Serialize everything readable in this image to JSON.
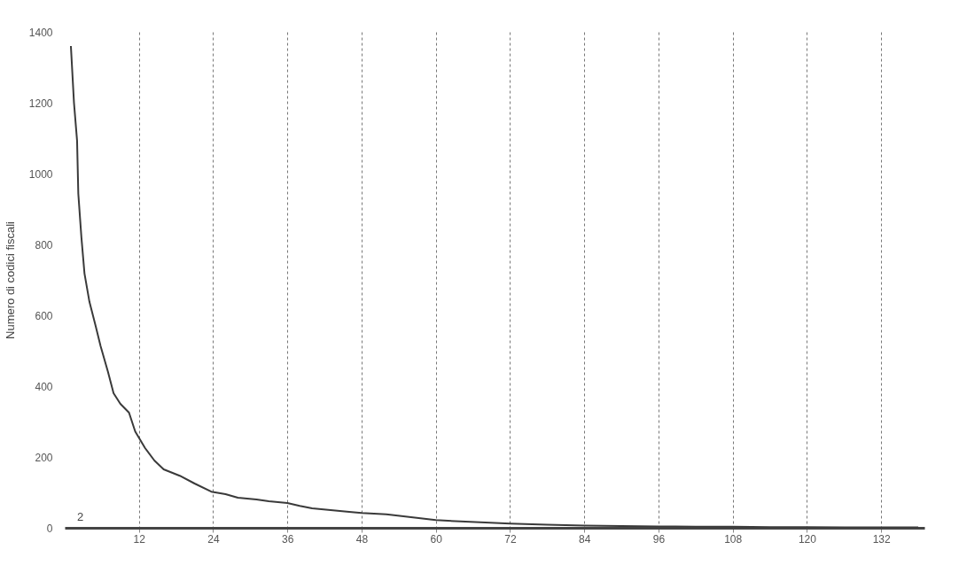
{
  "chart_data": {
    "type": "line",
    "ylabel": "Numero di codici fiscali",
    "annotations": [
      "2"
    ],
    "x": [
      1,
      1.5,
      2,
      2.2,
      2.7,
      3.2,
      4,
      5,
      5.8,
      7,
      7.9,
      9,
      10.4,
      11.4,
      13,
      14.5,
      16,
      18.6,
      21,
      23.7,
      26,
      28,
      31,
      33,
      36,
      38,
      40,
      43,
      46,
      48,
      52,
      56,
      60,
      64,
      68,
      72,
      78,
      84,
      90,
      96,
      102,
      108,
      114,
      120,
      126,
      132,
      138
    ],
    "series": [
      {
        "color": "#3a3a3a",
        "values": [
          1360,
          1200,
          1093,
          943,
          820,
          718,
          638,
          570,
          513,
          440,
          380,
          350,
          325,
          272,
          225,
          190,
          165,
          147,
          125,
          102,
          95,
          85,
          80,
          75,
          70,
          62,
          55,
          50,
          45,
          42,
          38,
          30,
          22,
          18,
          15,
          12,
          9,
          6,
          5,
          4,
          3,
          3,
          2,
          2,
          1,
          1,
          1
        ]
      }
    ],
    "xlim": [
      0,
      139
    ],
    "xticks": [
      12,
      24,
      36,
      48,
      60,
      72,
      84,
      96,
      108,
      120,
      132
    ],
    "ylim": [
      0,
      1400
    ],
    "yticks": [
      0,
      200,
      400,
      600,
      800,
      1000,
      1200,
      1400
    ],
    "grid": "x",
    "marker": "none",
    "line_style": "solid"
  }
}
